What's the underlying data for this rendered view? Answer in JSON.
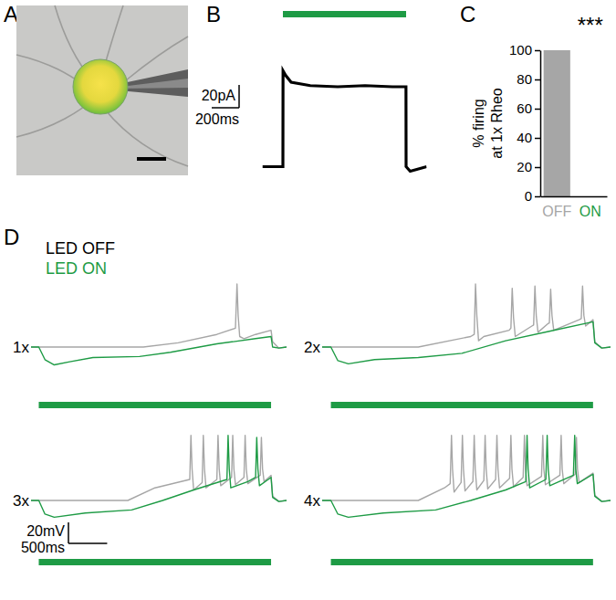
{
  "panel_labels": [
    "A",
    "B",
    "C",
    "D"
  ],
  "chart_data": [
    {
      "type": "line",
      "xlim": [
        -150,
        1050
      ],
      "ylim": [
        -10,
        90
      ],
      "tick_labels": false,
      "stimulus": {
        "start": 0,
        "end": 900,
        "color": "#1e9b45"
      },
      "scale_bars": {
        "x": 200,
        "x_label": "200ms",
        "y": 20,
        "y_label": "20pA"
      },
      "series": [
        {
          "color": "#000000",
          "x": [
            -150,
            0,
            1,
            20,
            60,
            200,
            400,
            600,
            800,
            899,
            900,
            930,
            1050
          ],
          "values": [
            0,
            0,
            84,
            80,
            74,
            71,
            70,
            71,
            70,
            70,
            0,
            -4,
            0
          ]
        }
      ]
    },
    {
      "type": "bar",
      "categories": [
        "OFF",
        "ON"
      ],
      "values": [
        100,
        0
      ],
      "colors": [
        "#a6a6a6",
        "#1e9b45"
      ],
      "ylabel": [
        "% firing",
        "at 1x Rheo"
      ],
      "ylim": [
        0,
        100
      ],
      "yticks": [
        0,
        20,
        40,
        60,
        80,
        100
      ],
      "annotation": "***"
    },
    {
      "type": "line",
      "xlim": [
        -100,
        3200
      ],
      "ylim": [
        -25,
        70
      ],
      "tick_labels": false,
      "legend": "top-left",
      "legend_entries": [
        {
          "label": "LED OFF",
          "color": "#000000"
        },
        {
          "label": "LED ON",
          "color": "#1e9b45"
        }
      ],
      "stimulus": {
        "start": 0,
        "end": 3000,
        "color": "#1e9b45"
      },
      "scale_bars": {
        "x": 500,
        "x_label": "500ms",
        "y": 20,
        "y_label": "20mV"
      },
      "panels": [
        {
          "label": "1x",
          "series": [
            {
              "name": "LED OFF",
              "color": "#a6a6a6",
              "x": [
                -100,
                1350,
                1800,
                2300,
                2540,
                2560,
                2575,
                2595,
                2650,
                2800,
                3000,
                3020,
                3100,
                3200
              ],
              "values": [
                0,
                0,
                4,
                12,
                18,
                60,
                30,
                10,
                8,
                12,
                16,
                5,
                -1,
                0
              ]
            },
            {
              "name": "LED ON",
              "color": "#1e9b45",
              "x": [
                -100,
                0,
                80,
                200,
                400,
                700,
                1300,
                1700,
                2300,
                2800,
                3000,
                3020,
                3100,
                3200
              ],
              "values": [
                0,
                0,
                -12,
                -17,
                -14,
                -10,
                -9,
                -5,
                3,
                8,
                10,
                0,
                -1,
                0
              ]
            }
          ]
        },
        {
          "label": "2x",
          "series": [
            {
              "name": "LED OFF",
              "color": "#a6a6a6",
              "x": [
                -100,
                1000,
                1600,
                1640,
                1655,
                1670,
                1690,
                1750,
                2040,
                2060,
                2075,
                2090,
                2110,
                2300,
                2320,
                2335,
                2350,
                2370,
                2480,
                2500,
                2515,
                2530,
                2550,
                2840,
                2865,
                2880,
                2895,
                2915,
                3000,
                3020,
                3100,
                3200
              ],
              "values": [
                0,
                0,
                10,
                12,
                60,
                30,
                6,
                10,
                16,
                18,
                56,
                28,
                10,
                20,
                21,
                58,
                30,
                14,
                22,
                23,
                55,
                30,
                16,
                26,
                27,
                58,
                30,
                20,
                26,
                5,
                -1,
                0
              ]
            },
            {
              "name": "LED ON",
              "color": "#1e9b45",
              "x": [
                -100,
                0,
                80,
                200,
                500,
                1000,
                1500,
                2000,
                2500,
                3000,
                3020,
                3100,
                3200
              ],
              "values": [
                0,
                0,
                -13,
                -16,
                -12,
                -10,
                -6,
                6,
                15,
                24,
                4,
                -1,
                0
              ]
            }
          ]
        },
        {
          "label": "3x",
          "series": [
            {
              "name": "LED OFF",
              "color": "#a6a6a6",
              "x": [
                -100,
                1150,
                1500,
                1950,
                1965,
                1980,
                2000,
                2110,
                2125,
                2140,
                2160,
                2300,
                2315,
                2330,
                2350,
                2490,
                2505,
                2520,
                2540,
                2650,
                2665,
                2680,
                2700,
                2860,
                2875,
                2890,
                2910,
                3000,
                3020,
                3100,
                3200
              ],
              "values": [
                0,
                0,
                12,
                20,
                62,
                30,
                10,
                17,
                62,
                30,
                12,
                20,
                62,
                30,
                14,
                22,
                62,
                30,
                15,
                22,
                62,
                30,
                16,
                24,
                60,
                30,
                18,
                24,
                4,
                -1,
                0
              ]
            },
            {
              "name": "LED ON",
              "color": "#1e9b45",
              "x": [
                -100,
                0,
                80,
                200,
                600,
                1200,
                1600,
                2000,
                2430,
                2445,
                2460,
                2480,
                2700,
                2800,
                2815,
                2830,
                2850,
                3000,
                3020,
                3100,
                3200
              ],
              "values": [
                0,
                0,
                -13,
                -16,
                -12,
                -9,
                0,
                10,
                20,
                62,
                30,
                12,
                18,
                22,
                60,
                30,
                14,
                22,
                3,
                -1,
                0
              ]
            }
          ]
        },
        {
          "label": "4x",
          "series": [
            {
              "name": "LED OFF",
              "color": "#a6a6a6",
              "x": [
                -100,
                1000,
                1300,
                1365,
                1380,
                1392,
                1410,
                1490,
                1505,
                1517,
                1535,
                1625,
                1640,
                1652,
                1670,
                1750,
                1765,
                1777,
                1795,
                1885,
                1900,
                1912,
                1930,
                2045,
                2060,
                2072,
                2090,
                2200,
                2215,
                2227,
                2245,
                2410,
                2425,
                2437,
                2455,
                2620,
                2635,
                2647,
                2665,
                2795,
                2810,
                2822,
                2840,
                3000,
                3020,
                3100,
                3200
              ],
              "values": [
                0,
                0,
                12,
                16,
                62,
                30,
                8,
                17,
                62,
                30,
                9,
                18,
                62,
                30,
                10,
                19,
                62,
                30,
                11,
                20,
                62,
                30,
                12,
                21,
                62,
                30,
                13,
                22,
                62,
                30,
                14,
                23,
                62,
                30,
                15,
                24,
                62,
                30,
                16,
                25,
                60,
                30,
                17,
                26,
                5,
                -1,
                0
              ]
            },
            {
              "name": "LED ON",
              "color": "#1e9b45",
              "x": [
                -100,
                0,
                80,
                200,
                600,
                1200,
                1600,
                2000,
                2230,
                2245,
                2257,
                2275,
                2460,
                2475,
                2487,
                2505,
                2775,
                2790,
                2802,
                2820,
                3000,
                3020,
                3100,
                3200
              ],
              "values": [
                0,
                0,
                -13,
                -16,
                -12,
                -9,
                0,
                10,
                18,
                62,
                30,
                12,
                20,
                62,
                30,
                14,
                24,
                62,
                30,
                16,
                25,
                4,
                -1,
                0
              ]
            }
          ]
        }
      ]
    }
  ]
}
